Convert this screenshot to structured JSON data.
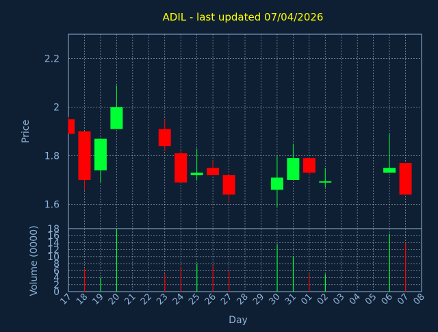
{
  "title": "ADIL - last updated 07/04/2026",
  "colors": {
    "background": "#0f1f33",
    "axis": "#8fb4d9",
    "title": "#ffff00",
    "up": "#00ff33",
    "down": "#ff0000",
    "grid": "#b9c6d4"
  },
  "chart_data": [
    {
      "type": "candlestick",
      "ylabel": "Price",
      "ylim": [
        1.5,
        2.3
      ],
      "yticks": [
        "1.6",
        "1.8",
        "2",
        "2.2"
      ],
      "ytick_values": [
        1.6,
        1.8,
        2.0,
        2.2
      ],
      "grid": true,
      "candles": [
        {
          "day": "17",
          "open": 1.95,
          "high": 1.96,
          "low": 1.89,
          "close": 1.89
        },
        {
          "day": "18",
          "open": 1.9,
          "high": 1.9,
          "low": 1.66,
          "close": 1.7
        },
        {
          "day": "19",
          "open": 1.74,
          "high": 1.87,
          "low": 1.69,
          "close": 1.87
        },
        {
          "day": "20",
          "open": 1.91,
          "high": 2.09,
          "low": 1.91,
          "close": 2.0
        },
        {
          "day": "23",
          "open": 1.91,
          "high": 1.95,
          "low": 1.82,
          "close": 1.84
        },
        {
          "day": "24",
          "open": 1.81,
          "high": 1.82,
          "low": 1.69,
          "close": 1.69
        },
        {
          "day": "25",
          "open": 1.72,
          "high": 1.83,
          "low": 1.7,
          "close": 1.73
        },
        {
          "day": "26",
          "open": 1.75,
          "high": 1.78,
          "low": 1.72,
          "close": 1.72
        },
        {
          "day": "27",
          "open": 1.72,
          "high": 1.72,
          "low": 1.61,
          "close": 1.64
        },
        {
          "day": "30",
          "open": 1.66,
          "high": 1.8,
          "low": 1.59,
          "close": 1.71
        },
        {
          "day": "31",
          "open": 1.7,
          "high": 1.85,
          "low": 1.7,
          "close": 1.79
        },
        {
          "day": "01",
          "open": 1.79,
          "high": 1.79,
          "low": 1.72,
          "close": 1.73
        },
        {
          "day": "02",
          "open": 1.69,
          "high": 1.75,
          "low": 1.67,
          "close": 1.695
        },
        {
          "day": "06",
          "open": 1.73,
          "high": 1.89,
          "low": 1.73,
          "close": 1.75
        },
        {
          "day": "07",
          "open": 1.77,
          "high": 1.77,
          "low": 1.64,
          "close": 1.64
        }
      ]
    },
    {
      "type": "bar",
      "xlabel": "Day",
      "ylabel": "Volume (0000)",
      "ylim": [
        0,
        18
      ],
      "yticks": [
        "0",
        "2",
        "4",
        "6",
        "8",
        "10",
        "12",
        "14",
        "16",
        "18"
      ],
      "ytick_values": [
        0,
        2,
        4,
        6,
        8,
        10,
        12,
        14,
        16,
        18
      ],
      "grid": true,
      "categories": [
        "17",
        "18",
        "19",
        "20",
        "21",
        "22",
        "23",
        "24",
        "25",
        "26",
        "27",
        "28",
        "29",
        "30",
        "31",
        "01",
        "02",
        "03",
        "04",
        "05",
        "06",
        "07",
        "08"
      ],
      "volumes": [
        {
          "day": "18",
          "value": 6.5,
          "direction": "down"
        },
        {
          "day": "19",
          "value": 4,
          "direction": "up"
        },
        {
          "day": "20",
          "value": 18,
          "direction": "up"
        },
        {
          "day": "23",
          "value": 5,
          "direction": "down"
        },
        {
          "day": "24",
          "value": 7,
          "direction": "down"
        },
        {
          "day": "25",
          "value": 8,
          "direction": "up"
        },
        {
          "day": "26",
          "value": 7.5,
          "direction": "down"
        },
        {
          "day": "27",
          "value": 6,
          "direction": "down"
        },
        {
          "day": "30",
          "value": 13.5,
          "direction": "up"
        },
        {
          "day": "31",
          "value": 10,
          "direction": "up"
        },
        {
          "day": "01",
          "value": 5,
          "direction": "down"
        },
        {
          "day": "02",
          "value": 5,
          "direction": "up"
        },
        {
          "day": "06",
          "value": 16.5,
          "direction": "up"
        },
        {
          "day": "07",
          "value": 14,
          "direction": "down"
        }
      ]
    }
  ]
}
